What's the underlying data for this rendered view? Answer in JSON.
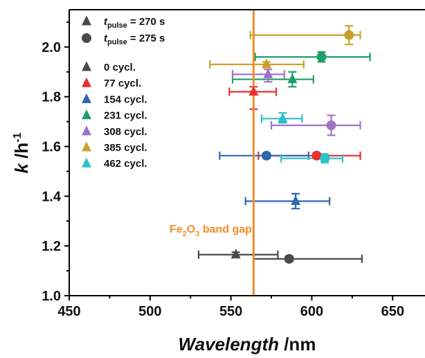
{
  "chart_data": {
    "type": "scatter",
    "title": "",
    "xlabel_main": "Wavelength",
    "xlabel_unit": " /nm",
    "ylabel_main": "k",
    "ylabel_unit": " /h",
    "ylabel_sup": "-1",
    "xlim": [
      450,
      670
    ],
    "ylim": [
      1.0,
      2.15
    ],
    "xticks": [
      450,
      500,
      550,
      600,
      650
    ],
    "xtick_labels": [
      "450",
      "500",
      "550",
      "600",
      "650"
    ],
    "yticks": [
      1.0,
      1.2,
      1.4,
      1.6,
      1.8,
      2.0
    ],
    "ytick_labels": [
      "1.0",
      "1.2",
      "1.4",
      "1.6",
      "1.8",
      "2.0"
    ],
    "grid": false,
    "legend_position": "top-left",
    "marker_legend": [
      {
        "marker": "triangle",
        "prefix": "t",
        "sub": "pulse",
        "suffix": " = 270 s"
      },
      {
        "marker": "circle",
        "prefix": "t",
        "sub": "pulse",
        "suffix": " = 275 s"
      }
    ],
    "annotation": {
      "value": 564,
      "label_main": "Fe",
      "label_sub1": "2",
      "label_mid": "O",
      "label_sub2": "3",
      "label_end": " band gap",
      "color": "#F28C28"
    },
    "series": [
      {
        "name": "0 cycl.",
        "color": "#4A4A4A",
        "points": [
          {
            "marker": "triangle",
            "x": 553,
            "y": 1.165,
            "xerr": [
              530,
              579
            ],
            "yerr": [
              1.155,
              1.175
            ]
          },
          {
            "marker": "circle",
            "x": 586,
            "y": 1.148,
            "xerr": [
              564,
              631
            ],
            "yerr": [
              1.138,
              1.158
            ]
          }
        ]
      },
      {
        "name": "77 cycl.",
        "color": "#E8302F",
        "points": [
          {
            "marker": "triangle",
            "x": 564,
            "y": 1.82,
            "xerr": [
              549,
              578
            ],
            "yerr": [
              1.75,
              1.84
            ]
          },
          {
            "marker": "circle",
            "x": 603,
            "y": 1.563,
            "xerr": [
              567,
              630
            ],
            "yerr": [
              1.553,
              1.573
            ]
          }
        ]
      },
      {
        "name": "154 cycl.",
        "color": "#2F67B1",
        "points": [
          {
            "marker": "triangle",
            "x": 590,
            "y": 1.38,
            "xerr": [
              559,
              611
            ],
            "yerr": [
              1.35,
              1.41
            ]
          },
          {
            "marker": "circle",
            "x": 572,
            "y": 1.563,
            "xerr": [
              543,
              598
            ],
            "yerr": [
              1.553,
              1.573
            ]
          }
        ]
      },
      {
        "name": "231 cycl.",
        "color": "#1E9E6A",
        "points": [
          {
            "marker": "triangle",
            "x": 588,
            "y": 1.87,
            "xerr": [
              551,
              601
            ],
            "yerr": [
              1.84,
              1.9
            ]
          },
          {
            "marker": "circle",
            "x": 606,
            "y": 1.96,
            "xerr": [
              565,
              636
            ],
            "yerr": [
              1.94,
              1.98
            ]
          }
        ]
      },
      {
        "name": "308 cycl.",
        "color": "#A173C8",
        "points": [
          {
            "marker": "triangle",
            "x": 573,
            "y": 1.89,
            "xerr": [
              551,
              583
            ],
            "yerr": [
              1.86,
              1.91
            ]
          },
          {
            "marker": "circle",
            "x": 612,
            "y": 1.685,
            "xerr": [
              575,
              630
            ],
            "yerr": [
              1.645,
              1.725
            ]
          }
        ]
      },
      {
        "name": "385 cycl.",
        "color": "#C9A02A",
        "points": [
          {
            "marker": "triangle",
            "x": 572,
            "y": 1.93,
            "xerr": [
              537,
              595
            ],
            "yerr": [
              1.92,
              1.94
            ]
          },
          {
            "marker": "circle",
            "x": 623,
            "y": 2.048,
            "xerr": [
              562,
              630
            ],
            "yerr": [
              2.01,
              2.085
            ]
          }
        ]
      },
      {
        "name": "462 cycl.",
        "color": "#2EC1C9",
        "points": [
          {
            "marker": "triangle",
            "x": 582,
            "y": 1.712,
            "xerr": [
              569,
              594
            ],
            "yerr": [
              1.695,
              1.735
            ]
          },
          {
            "marker": "circle",
            "x": 608,
            "y": 1.552,
            "xerr": [
              581,
              619
            ],
            "yerr": [
              1.535,
              1.57
            ]
          }
        ]
      }
    ]
  }
}
